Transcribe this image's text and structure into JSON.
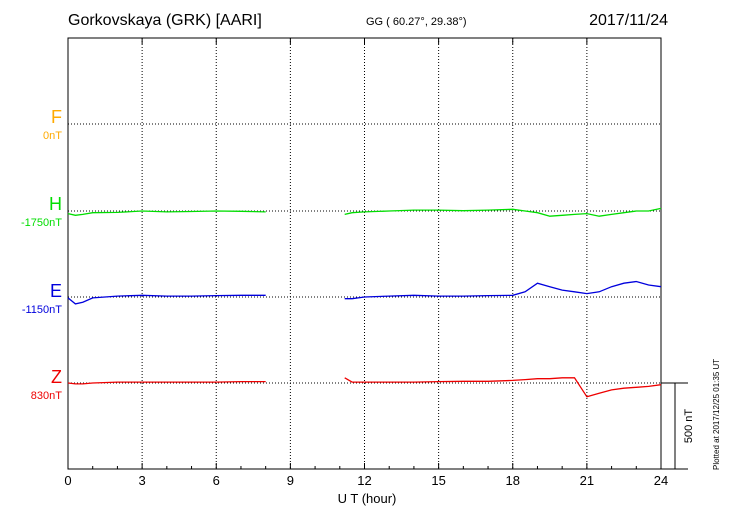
{
  "header": {
    "station": "Gorkovskaya (GRK)  [AARI]",
    "coords": "GG ( 60.27°,  29.38°)",
    "date": "2017/11/24"
  },
  "footer": {
    "plotted": "Plotted at 2017/12/25 01:35 UT"
  },
  "colors": {
    "F": "#ffaa00",
    "H": "#00dd00",
    "E": "#0000dd",
    "Z": "#ee0000"
  },
  "chart_data": {
    "type": "line",
    "xlabel": "U T (hour)",
    "xlim": [
      0,
      24
    ],
    "xticks": [
      0,
      3,
      6,
      9,
      12,
      15,
      18,
      21,
      24
    ],
    "scale_bar": {
      "label": "500 nT",
      "value_nT": 500
    },
    "components": [
      {
        "name": "F",
        "baseline": "0nT",
        "color": "#ffaa00",
        "values": []
      },
      {
        "name": "H",
        "baseline": "-1750nT",
        "color": "#00dd00",
        "x": [
          0,
          0.3,
          0.6,
          1,
          2,
          3,
          4,
          5,
          6,
          7,
          8,
          11.2,
          11.5,
          12,
          13,
          14,
          15,
          16,
          17,
          18,
          18.5,
          19,
          19.5,
          20,
          20.5,
          21,
          21.5,
          22,
          22.5,
          23,
          23.5,
          24
        ],
        "values": [
          -15,
          -25,
          -20,
          -10,
          -8,
          0,
          -5,
          -3,
          0,
          -2,
          -5,
          -20,
          -10,
          -5,
          0,
          5,
          5,
          2,
          5,
          10,
          0,
          -10,
          -30,
          -25,
          -20,
          -15,
          -30,
          -20,
          -10,
          0,
          0,
          15
        ]
      },
      {
        "name": "E",
        "baseline": "-1150nT",
        "color": "#0000dd",
        "x": [
          0,
          0.3,
          0.6,
          1,
          2,
          3,
          4,
          5,
          6,
          7,
          8,
          11.2,
          11.5,
          12,
          13,
          14,
          15,
          16,
          17,
          18,
          18.5,
          19,
          19.5,
          20,
          20.5,
          21,
          21.5,
          22,
          22.5,
          23,
          23.5,
          24
        ],
        "values": [
          -5,
          -40,
          -30,
          -5,
          5,
          10,
          5,
          5,
          8,
          10,
          10,
          -10,
          -10,
          0,
          5,
          10,
          5,
          5,
          8,
          10,
          30,
          80,
          60,
          40,
          30,
          20,
          30,
          60,
          80,
          90,
          70,
          60
        ]
      },
      {
        "name": "Z",
        "baseline": "830nT",
        "color": "#ee0000",
        "x": [
          0,
          0.3,
          0.6,
          1,
          2,
          3,
          4,
          5,
          6,
          7,
          8,
          11.2,
          11.5,
          12,
          13,
          14,
          15,
          16,
          17,
          18,
          18.5,
          19,
          19.5,
          20,
          20.5,
          21,
          21.5,
          22,
          22.5,
          23,
          23.5,
          24
        ],
        "values": [
          0,
          -5,
          -5,
          0,
          5,
          5,
          5,
          5,
          5,
          8,
          8,
          30,
          5,
          5,
          5,
          5,
          8,
          10,
          10,
          15,
          20,
          25,
          25,
          30,
          30,
          -80,
          -60,
          -40,
          -30,
          -25,
          -20,
          -10
        ]
      }
    ]
  }
}
